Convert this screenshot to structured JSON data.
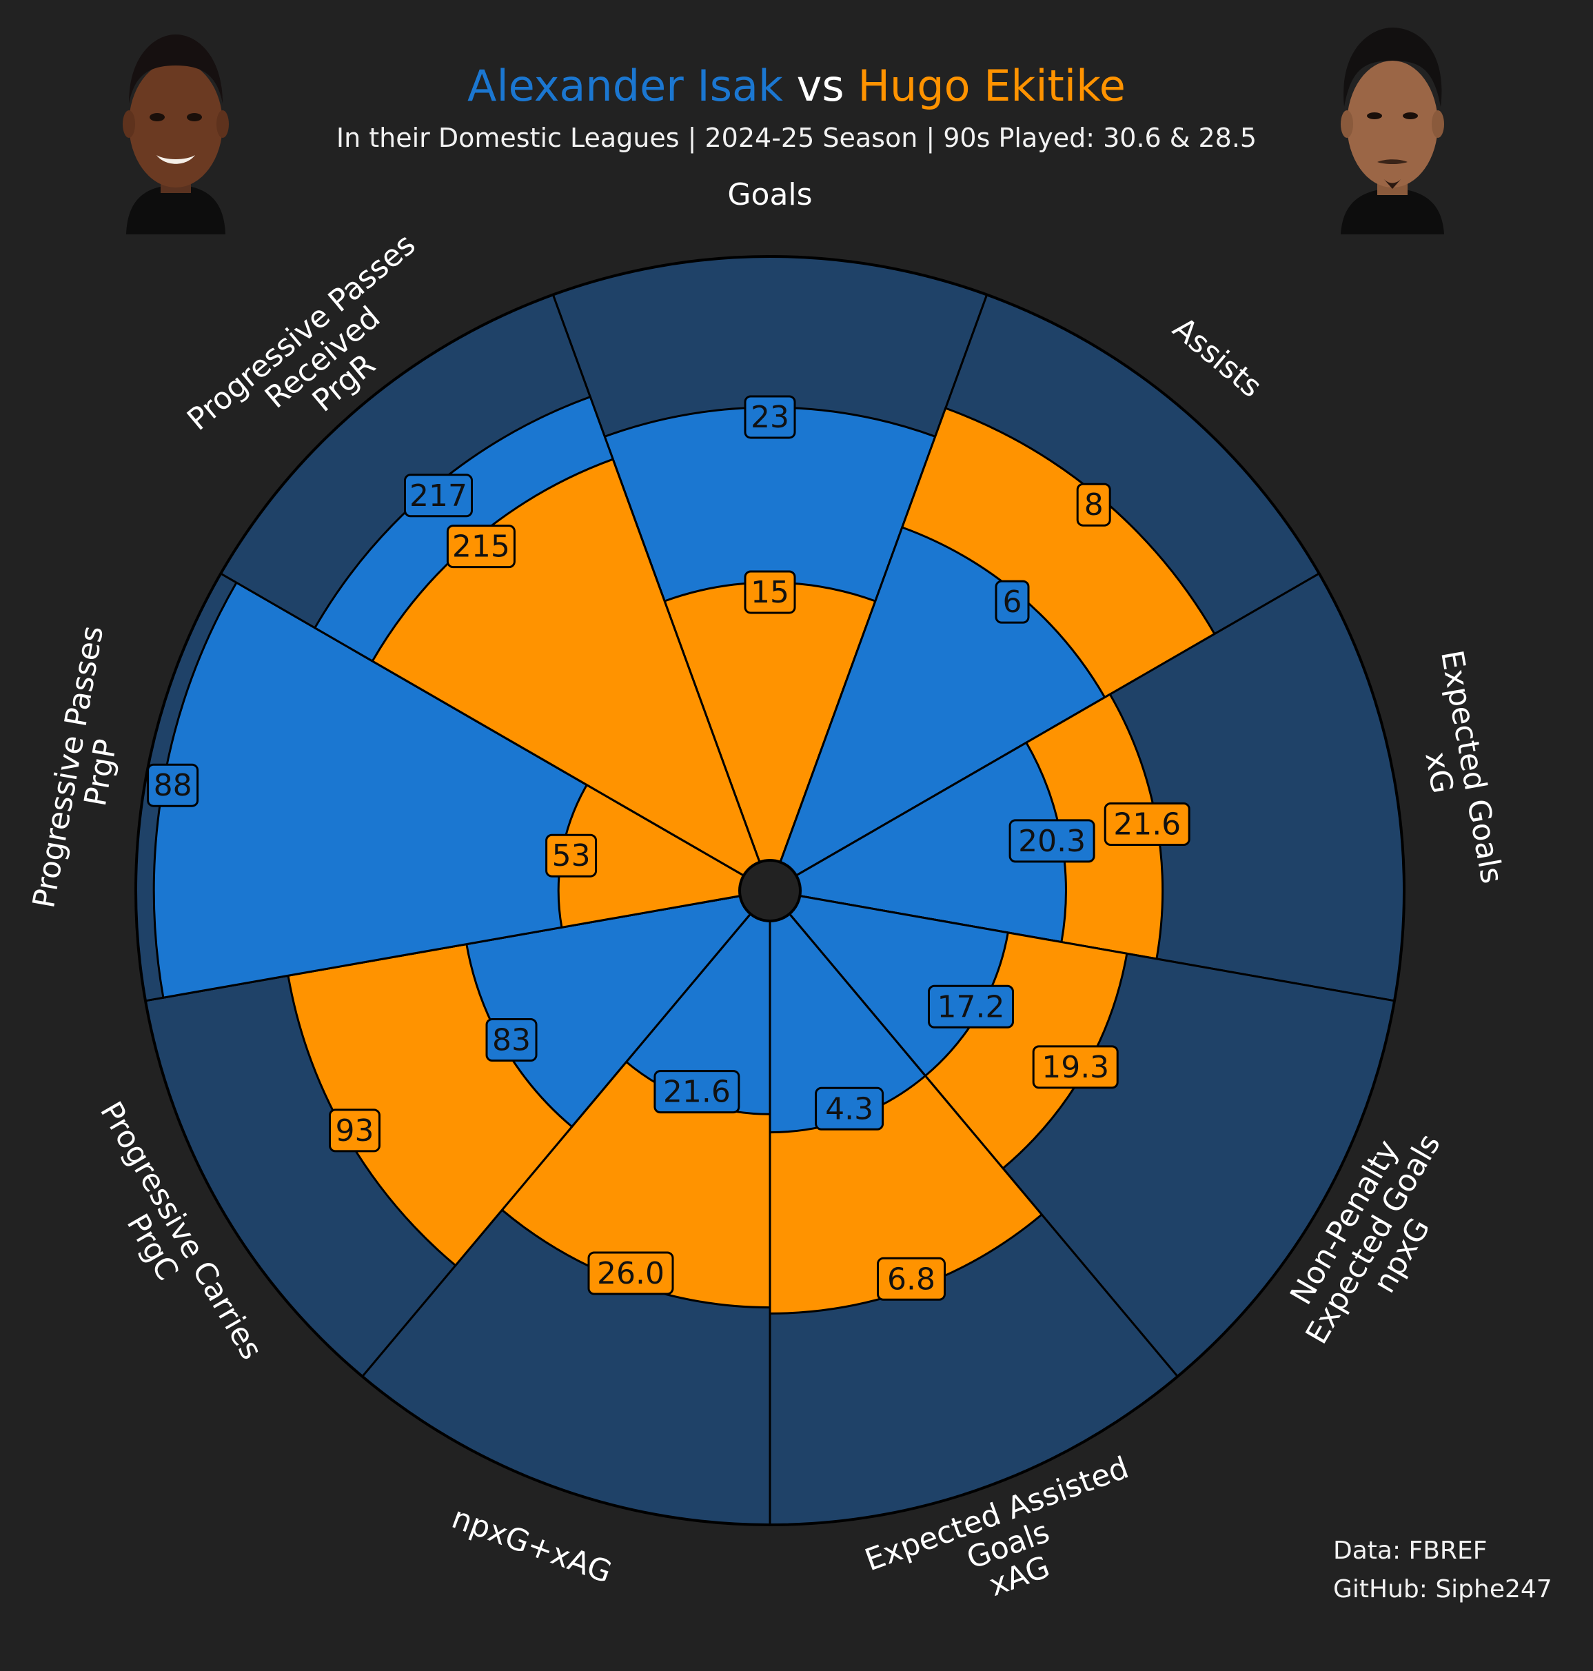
{
  "header": {
    "player_a": "Alexander Isak",
    "vs": "vs",
    "player_b": "Hugo Ekitike",
    "subtitle": "In their Domestic Leagues | 2024-25 Season | 90s Played: 30.6 & 28.5"
  },
  "credits": {
    "data_source": "Data: FBREF",
    "github": "GitHub: Siphe247"
  },
  "colors": {
    "background": "#222222",
    "player_a": "#1b77d1",
    "player_b": "#ff9300",
    "slice_bg": "#1f4268",
    "text": "#ffffff"
  },
  "icons": {
    "player_a_photo": "player-a-photo",
    "player_b_photo": "player-b-photo"
  },
  "chart_data": {
    "type": "pizza",
    "series": [
      {
        "name": "Alexander Isak",
        "color": "#1b77d1"
      },
      {
        "name": "Hugo Ekitike",
        "color": "#ff9300"
      }
    ],
    "categories": [
      {
        "label": "Goals",
        "a": 23,
        "b": 15,
        "a_pct": 0.75,
        "b_pct": 0.46
      },
      {
        "label": "Assists",
        "a": 6,
        "b": 8,
        "a_pct": 0.59,
        "b_pct": 0.8
      },
      {
        "label": "Expected Goals\nxG",
        "a": "20.3",
        "b": "21.6",
        "a_pct": 0.44,
        "b_pct": 0.6
      },
      {
        "label": "Non-Penalty\nExpected Goals\nnpxG",
        "a": "17.2",
        "b": "19.3",
        "a_pct": 0.35,
        "b_pct": 0.55
      },
      {
        "label": "Expected Assisted\nGoals\nxAG",
        "a": "4.3",
        "b": "6.8",
        "a_pct": 0.35,
        "b_pct": 0.65
      },
      {
        "label": "npxG+xAG",
        "a": "21.6",
        "b": "26.0",
        "a_pct": 0.32,
        "b_pct": 0.64
      },
      {
        "label": "Progressive Carries\nPrgC",
        "a": 83,
        "b": 93,
        "a_pct": 0.46,
        "b_pct": 0.76
      },
      {
        "label": "Progressive Passes\nPrgP",
        "a": 88,
        "b": 53,
        "a_pct": 0.97,
        "b_pct": 0.3
      },
      {
        "label": "Progressive Passes\nReceived\nPrgR",
        "a": 217,
        "b": 215,
        "a_pct": 0.82,
        "b_pct": 0.71
      }
    ]
  }
}
